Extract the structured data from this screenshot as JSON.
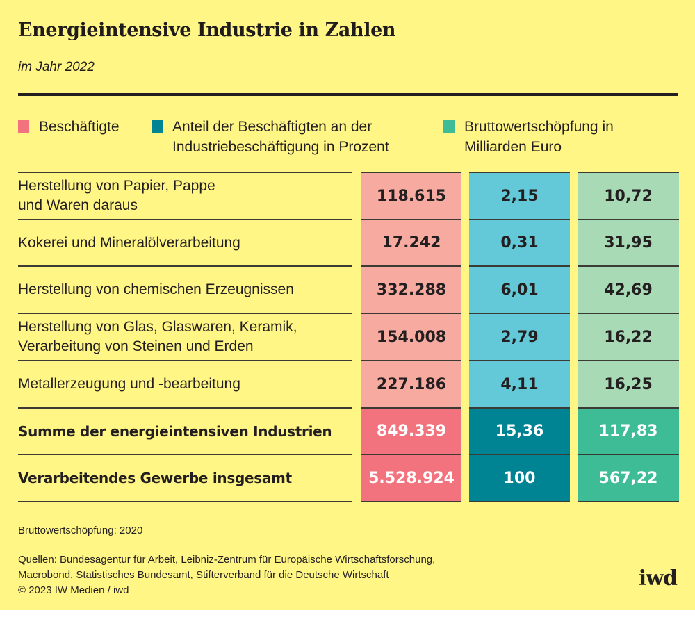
{
  "header": {
    "title": "Energieintensive Industrie in Zahlen",
    "subtitle": "im Jahr 2022"
  },
  "legend": [
    {
      "label_line1": "Beschäftigte",
      "label_line2": "",
      "color": "#f2727d"
    },
    {
      "label_line1": "Anteil der Beschäftigten an der",
      "label_line2": "Industriebeschäftigung in Prozent",
      "color": "#008494"
    },
    {
      "label_line1": "Bruttowertschöpfung in",
      "label_line2": "Milliarden Euro",
      "color": "#3dbc96"
    }
  ],
  "colors": {
    "background": "#fff685",
    "employees_light": "#f7aaa0",
    "employees_dark": "#f2727d",
    "share_light": "#63c9d8",
    "share_dark": "#008494",
    "value_light": "#a8dab5",
    "value_dark": "#3dbc96",
    "text_dark": "#231f20",
    "text_light": "#ffffff"
  },
  "chart_data": {
    "type": "table",
    "title": "Energieintensive Industrie in Zahlen",
    "subtitle": "im Jahr 2022",
    "columns": [
      "Beschäftigte",
      "Anteil der Beschäftigten an der Industriebeschäftigung in Prozent",
      "Bruttowertschöpfung in Milliarden Euro"
    ],
    "rows": [
      {
        "label_line1": "Herstellung von  Papier, Pappe",
        "label_line2": "und Waren daraus",
        "employees": "118.615",
        "share": "2,15",
        "value": "10,72",
        "total": false
      },
      {
        "label_line1": "Kokerei und Mineralölverarbeitung",
        "label_line2": "",
        "employees": "17.242",
        "share": "0,31",
        "value": "31,95",
        "total": false
      },
      {
        "label_line1": "Herstellung von chemischen Erzeugnissen",
        "label_line2": "",
        "employees": "332.288",
        "share": "6,01",
        "value": "42,69",
        "total": false
      },
      {
        "label_line1": "Herstellung von Glas, Glaswaren, Keramik,",
        "label_line2": "Verarbeitung von Steinen und Erden",
        "employees": "154.008",
        "share": "2,79",
        "value": "16,22",
        "total": false
      },
      {
        "label_line1": "Metallerzeugung und -bearbeitung",
        "label_line2": "",
        "employees": "227.186",
        "share": "4,11",
        "value": "16,25",
        "total": false
      },
      {
        "label_line1": "Summe der energieintensiven Industrien",
        "label_line2": "",
        "employees": "849.339",
        "share": "15,36",
        "value": "117,83",
        "total": true
      },
      {
        "label_line1": "Verarbeitendes Gewerbe insgesamt",
        "label_line2": "",
        "employees": "5.528.924",
        "share": "100",
        "value": "567,22",
        "total": true
      }
    ]
  },
  "footer": {
    "note": "Bruttowertschöpfung: 2020",
    "sources_line1": "Quellen: Bundesagentur für Arbeit, Leibniz-Zentrum für Europäische Wirtschaftsforschung,",
    "sources_line2": "Macrobond, Statistisches Bundesamt, Stifterverband für die Deutsche Wirtschaft",
    "copyright": "© 2023 IW Medien / iwd",
    "logo": "iwd"
  }
}
